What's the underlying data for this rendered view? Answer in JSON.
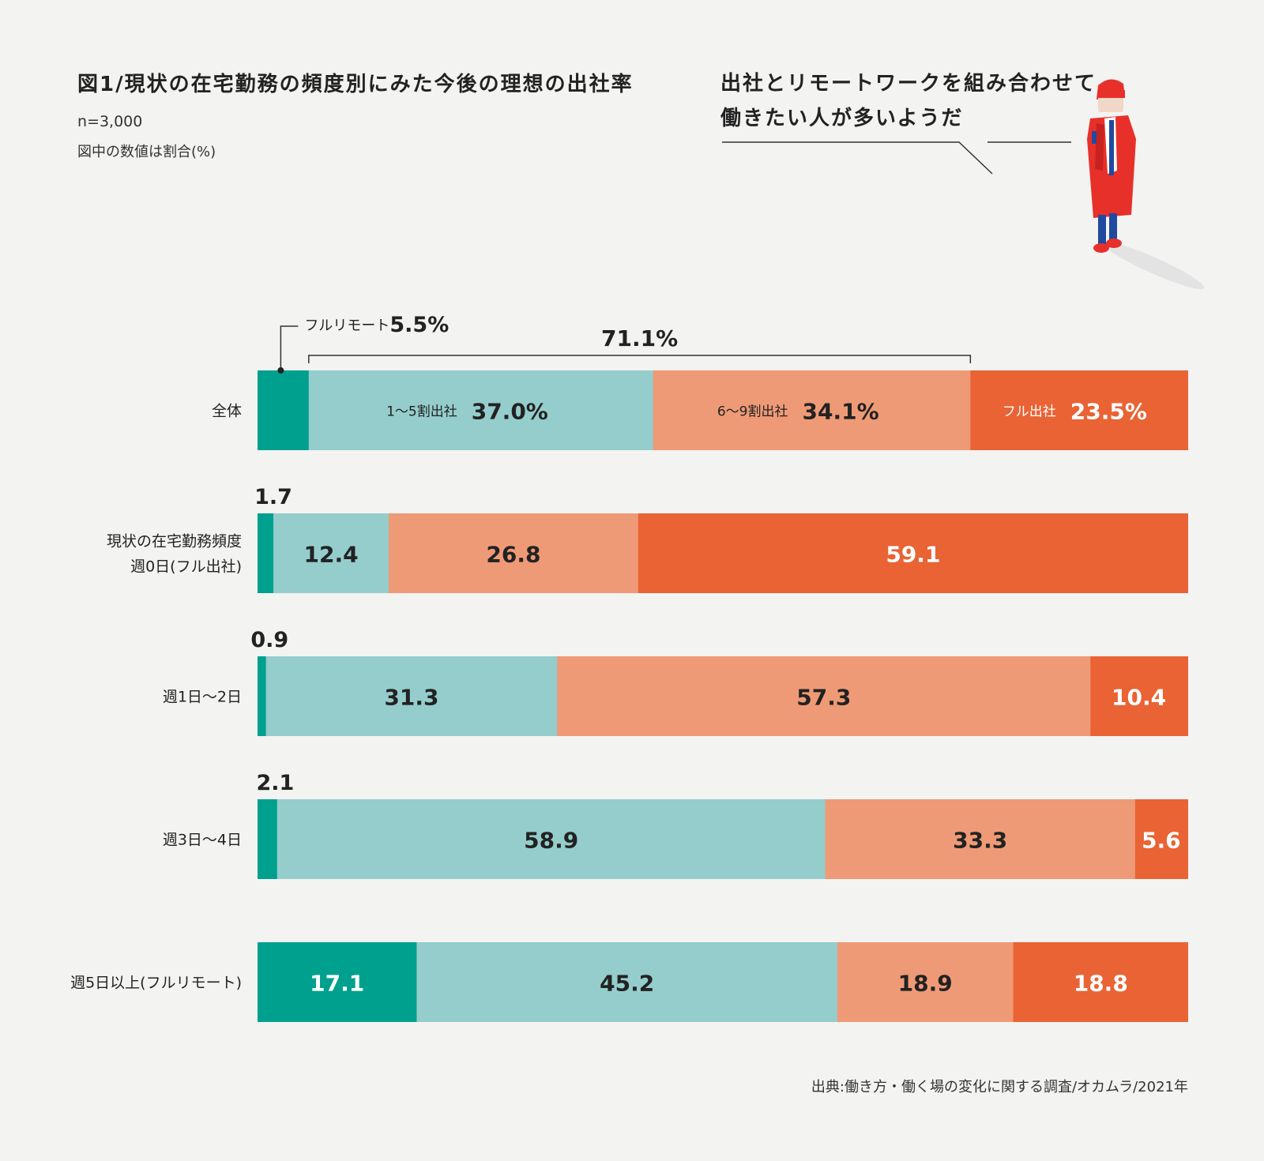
{
  "title": "図1/現状の在宅勤務の頻度別にみた今後の理想の出社率",
  "sample_size": "n=3,000",
  "note": "図中の数値は割合(%)",
  "speech": {
    "line1": "出社とリモートワークを組み合わせて",
    "line2": "働きたい人が多いようだ"
  },
  "source": "出典:働き方・働く場の変化に関する調査/オカムラ/2021年",
  "illustration": "person-in-red-coat-icon",
  "colors": {
    "full_remote": "#00a08e",
    "one_to_five": "#94cdcc",
    "six_to_nine": "#ef9a76",
    "full_office": "#e96334"
  },
  "chart_data": {
    "type": "bar",
    "orientation": "horizontal",
    "stacked": true,
    "xlim": [
      0,
      100
    ],
    "categories": [
      "全体",
      "現状の在宅勤務頻度\n週0日(フル出社)",
      "週1日〜2日",
      "週3日〜4日",
      "週5日以上(フルリモート)"
    ],
    "series": [
      {
        "name": "フルリモート",
        "values": [
          5.5,
          1.7,
          0.9,
          2.1,
          17.1
        ]
      },
      {
        "name": "1〜5割出社",
        "values": [
          37.0,
          12.4,
          31.3,
          58.9,
          45.2
        ]
      },
      {
        "name": "6〜9割出社",
        "values": [
          34.1,
          26.8,
          57.3,
          33.3,
          18.9
        ]
      },
      {
        "name": "フル出社",
        "values": [
          23.5,
          59.1,
          10.4,
          5.6,
          18.8
        ]
      }
    ],
    "value_labels": [
      [
        "5.5%",
        "37.0%",
        "34.1%",
        "23.5%"
      ],
      [
        "1.7",
        "12.4",
        "26.8",
        "59.1"
      ],
      [
        "0.9",
        "31.3",
        "57.3",
        "10.4"
      ],
      [
        "2.1",
        "58.9",
        "33.3",
        "5.6"
      ],
      [
        "17.1",
        "45.2",
        "18.9",
        "18.8"
      ]
    ],
    "bracket": {
      "label": "71.1%",
      "from_series": 1,
      "to_series": 2,
      "value": 71.1
    }
  }
}
